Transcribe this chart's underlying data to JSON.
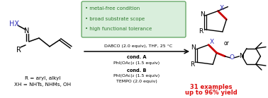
{
  "bg_color": "#ffffff",
  "green_box_color": "#d9eedc",
  "green_box_border": "#6aaa6a",
  "bullet_text_color": "#2d7a2d",
  "bullet_points": [
    "• metal-free condition",
    "• broad substrate scope",
    "• high functional tolerance"
  ],
  "dabco_text": "DABCO (2.0 equiv), THF, 25 °C",
  "cond_a_bold": "cond. A",
  "cond_a_text": "PhI(OAc)₂ (1.5 equiv)",
  "cond_b_bold": "cond. B",
  "cond_b_text1": "PhI(OAc)₂ (1.5 equiv)",
  "cond_b_text2": "TEMPO (2.0 equiv)",
  "r_text": "R = aryl, alkyl",
  "xh_text": "XH = NHTs, NHMs, OH",
  "result_text1": "31 examples",
  "result_text2": "up to 96% yield",
  "result_color": "#dd1111",
  "arrow_color": "#000000",
  "blue_color": "#3333bb",
  "red_bond_color": "#cc0000",
  "or_text": "or"
}
